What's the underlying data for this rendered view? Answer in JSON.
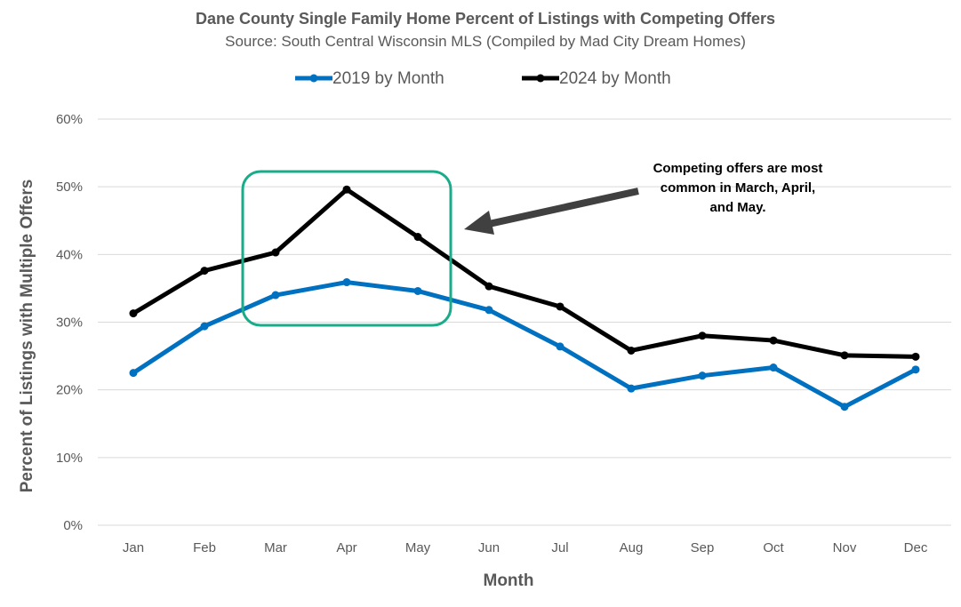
{
  "chart_data": {
    "type": "line",
    "title": "Dane County Single Family Home Percent of Listings with Competing Offers",
    "subtitle": "Source: South Central Wisconsin MLS (Compiled by Mad City Dream Homes)",
    "xlabel": "Month",
    "ylabel": "Percent of Listings with Multiple Offers",
    "categories": [
      "Jan",
      "Feb",
      "Mar",
      "Apr",
      "May",
      "Jun",
      "Jul",
      "Aug",
      "Sep",
      "Oct",
      "Nov",
      "Dec"
    ],
    "ylim": [
      0,
      60
    ],
    "yticks": [
      "0%",
      "10%",
      "20%",
      "30%",
      "40%",
      "50%",
      "60%"
    ],
    "grid": true,
    "legend_position": "top",
    "series": [
      {
        "name": "2019 by Month",
        "color": "#0070c0",
        "values": [
          22.5,
          29.4,
          34.0,
          35.9,
          34.6,
          31.8,
          26.4,
          20.2,
          22.1,
          23.3,
          17.5,
          23.0
        ]
      },
      {
        "name": "2024 by Month",
        "color": "#000000",
        "values": [
          31.3,
          37.6,
          40.3,
          49.6,
          42.6,
          35.3,
          32.3,
          25.8,
          28.0,
          27.3,
          25.1,
          24.9
        ]
      }
    ],
    "annotation": {
      "lines": [
        "Competing offers are most",
        "common in March, April,",
        "and May."
      ],
      "highlight_color": "#1aab8a",
      "arrow_color": "#404040"
    }
  }
}
